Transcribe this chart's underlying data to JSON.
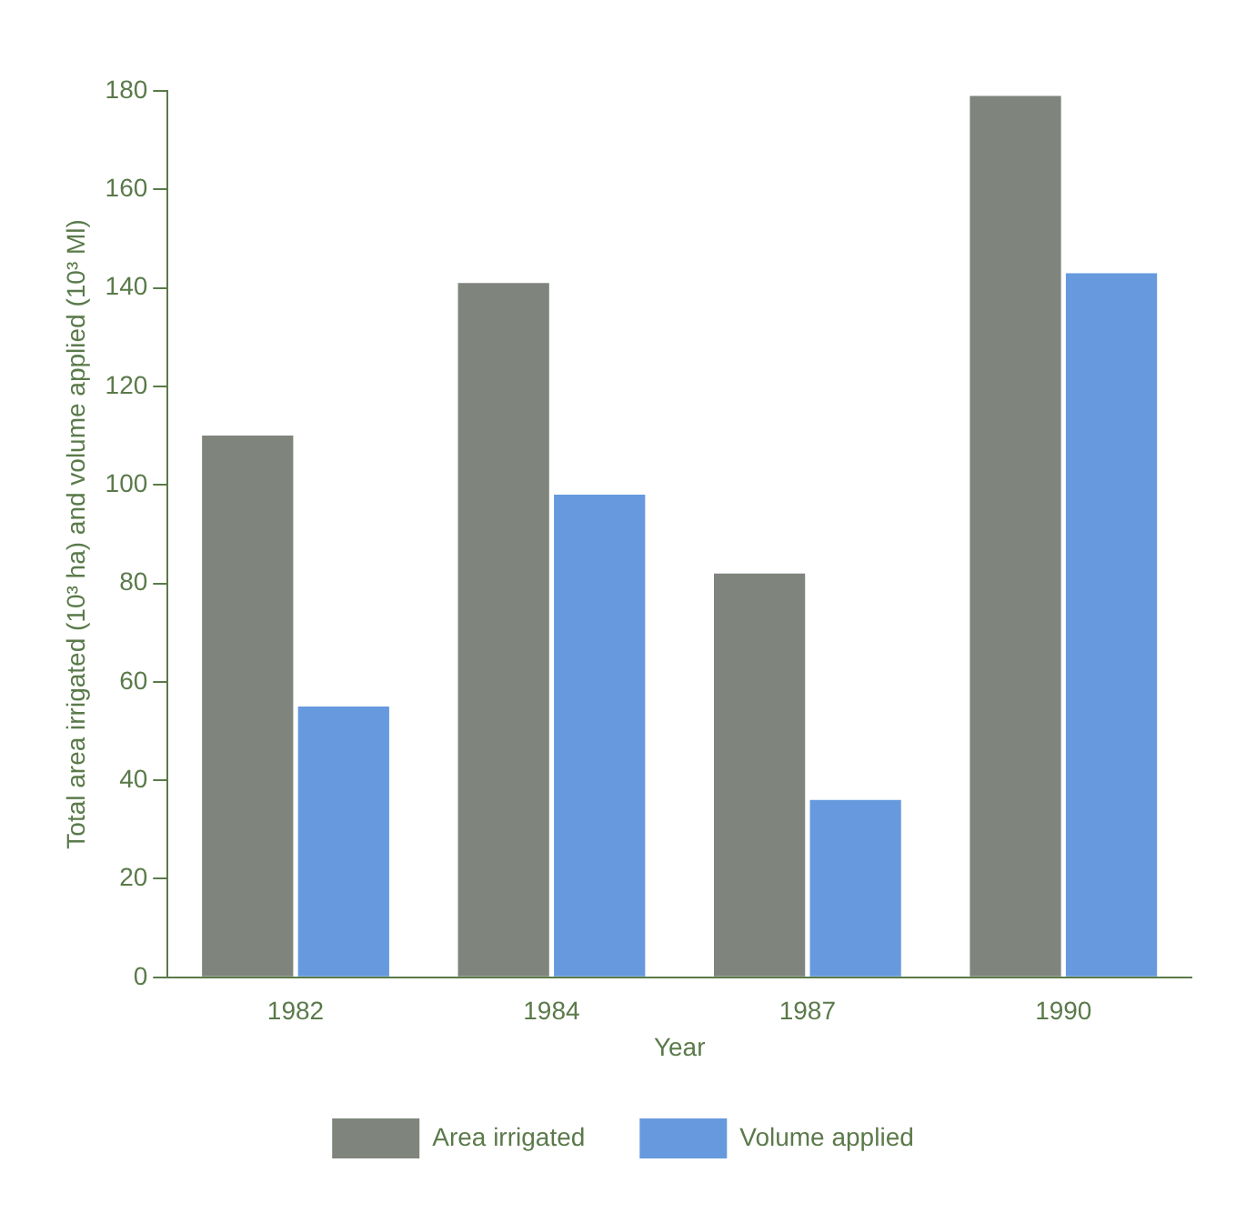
{
  "chart_data": {
    "type": "bar",
    "xlabel": "Year",
    "ylabel": "Total area irrigated (10³ ha) and volume applied (10³ Ml)",
    "categories": [
      "1982",
      "1984",
      "1987",
      "1990"
    ],
    "series": [
      {
        "name": "Area irrigated",
        "color": "#7f857c",
        "values": [
          110,
          141,
          82,
          179
        ]
      },
      {
        "name": "Volume applied",
        "color": "#6699dd",
        "values": [
          55,
          98,
          36,
          143
        ]
      }
    ],
    "ylim": [
      0,
      180
    ],
    "yticks": [
      0,
      20,
      40,
      60,
      80,
      100,
      120,
      140,
      160,
      180
    ],
    "grid": false,
    "legend": "bottom"
  }
}
